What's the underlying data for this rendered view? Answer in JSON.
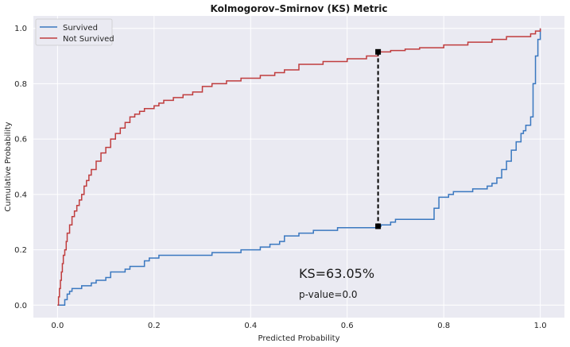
{
  "chart_data": {
    "type": "line",
    "title": "Kolmogorov–Smirnov (KS) Metric",
    "xlabel": "Predicted Probability",
    "ylabel": "Cumulative Probability",
    "xlim": [
      -0.05,
      1.05
    ],
    "ylim": [
      -0.045,
      1.045
    ],
    "xticks": [
      "0.0",
      "0.2",
      "0.4",
      "0.6",
      "0.8",
      "1.0"
    ],
    "yticks": [
      "0.0",
      "0.2",
      "0.4",
      "0.6",
      "0.8",
      "1.0"
    ],
    "grid": true,
    "legend_position": "top-left",
    "series": [
      {
        "name": "Survived",
        "color": "#3a78c0",
        "x": [
          0.0,
          0.015,
          0.02,
          0.025,
          0.03,
          0.035,
          0.05,
          0.07,
          0.08,
          0.1,
          0.11,
          0.14,
          0.15,
          0.18,
          0.19,
          0.2,
          0.21,
          0.32,
          0.35,
          0.38,
          0.42,
          0.44,
          0.46,
          0.47,
          0.5,
          0.53,
          0.58,
          0.64,
          0.664,
          0.67,
          0.69,
          0.7,
          0.78,
          0.79,
          0.81,
          0.82,
          0.86,
          0.89,
          0.9,
          0.91,
          0.92,
          0.93,
          0.94,
          0.95,
          0.96,
          0.965,
          0.97,
          0.98,
          0.985,
          0.99,
          0.995,
          1.0
        ],
        "y": [
          0.0,
          0.02,
          0.04,
          0.05,
          0.06,
          0.06,
          0.07,
          0.08,
          0.09,
          0.1,
          0.12,
          0.13,
          0.14,
          0.16,
          0.17,
          0.17,
          0.18,
          0.19,
          0.19,
          0.2,
          0.21,
          0.22,
          0.23,
          0.25,
          0.26,
          0.27,
          0.28,
          0.28,
          0.285,
          0.29,
          0.3,
          0.31,
          0.35,
          0.39,
          0.4,
          0.41,
          0.42,
          0.43,
          0.44,
          0.46,
          0.49,
          0.52,
          0.56,
          0.59,
          0.62,
          0.63,
          0.65,
          0.68,
          0.8,
          0.9,
          0.96,
          1.0
        ]
      },
      {
        "name": "Not Survived",
        "color": "#c03d3e",
        "x": [
          0.0,
          0.002,
          0.004,
          0.006,
          0.008,
          0.01,
          0.012,
          0.015,
          0.018,
          0.02,
          0.025,
          0.03,
          0.035,
          0.04,
          0.045,
          0.05,
          0.055,
          0.06,
          0.065,
          0.07,
          0.08,
          0.09,
          0.1,
          0.11,
          0.12,
          0.13,
          0.14,
          0.15,
          0.16,
          0.17,
          0.18,
          0.2,
          0.21,
          0.22,
          0.24,
          0.26,
          0.28,
          0.3,
          0.32,
          0.35,
          0.38,
          0.42,
          0.45,
          0.47,
          0.5,
          0.55,
          0.6,
          0.64,
          0.664,
          0.69,
          0.72,
          0.75,
          0.8,
          0.85,
          0.9,
          0.93,
          0.97,
          0.98,
          0.99,
          1.0
        ],
        "y": [
          0.0,
          0.03,
          0.06,
          0.09,
          0.12,
          0.15,
          0.18,
          0.2,
          0.23,
          0.26,
          0.29,
          0.32,
          0.34,
          0.36,
          0.38,
          0.4,
          0.43,
          0.45,
          0.47,
          0.49,
          0.52,
          0.55,
          0.57,
          0.6,
          0.62,
          0.64,
          0.66,
          0.68,
          0.69,
          0.7,
          0.71,
          0.72,
          0.73,
          0.74,
          0.75,
          0.76,
          0.77,
          0.79,
          0.8,
          0.81,
          0.82,
          0.83,
          0.84,
          0.85,
          0.87,
          0.88,
          0.89,
          0.9,
          0.915,
          0.92,
          0.925,
          0.93,
          0.94,
          0.95,
          0.96,
          0.97,
          0.97,
          0.98,
          0.99,
          1.0
        ]
      }
    ],
    "ks_line": {
      "x": 0.664,
      "y_low": 0.285,
      "y_high": 0.915
    },
    "annotations": {
      "ks_text": "KS=63.05%",
      "p_value_text": "p-value=0.0"
    }
  }
}
